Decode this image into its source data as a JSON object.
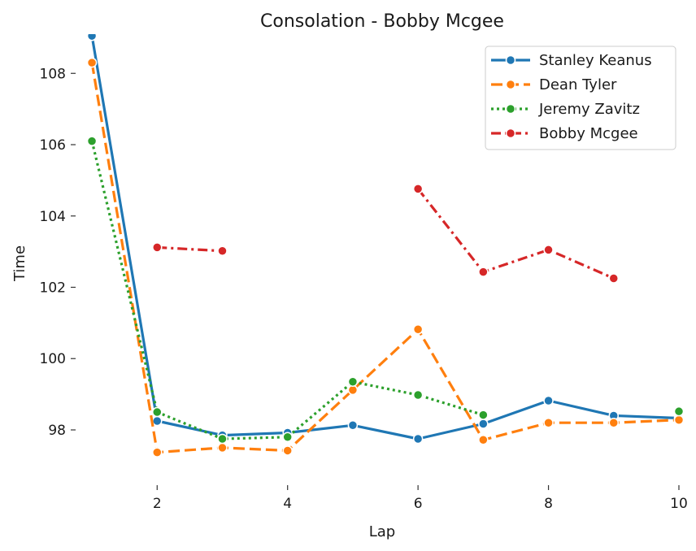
{
  "chart_data": {
    "type": "line",
    "title": "Consolation - Bobby Mcgee",
    "xlabel": "Lap",
    "ylabel": "Time",
    "xlim": [
      0.75,
      10.1
    ],
    "ylim": [
      96.45,
      109.1
    ],
    "xticks": [
      2,
      4,
      6,
      8,
      10
    ],
    "yticks": [
      98,
      100,
      102,
      104,
      106,
      108
    ],
    "grid": false,
    "legend_position": "top-right",
    "series": [
      {
        "name": "Stanley Keanus",
        "color": "#1f77b4",
        "dash": "solid",
        "x": [
          1,
          2,
          3,
          4,
          5,
          6,
          7,
          8,
          9,
          10
        ],
        "y": [
          109.05,
          98.25,
          97.85,
          97.92,
          98.13,
          97.75,
          98.17,
          98.82,
          98.4,
          98.33
        ]
      },
      {
        "name": "Dean Tyler",
        "color": "#ff7f0e",
        "dash": "dashed",
        "x": [
          1,
          2,
          3,
          4,
          5,
          6,
          7,
          8,
          9,
          10
        ],
        "y": [
          108.3,
          97.37,
          97.5,
          97.42,
          99.12,
          100.82,
          97.72,
          98.2,
          98.2,
          98.28
        ]
      },
      {
        "name": "Jeremy Zavitz",
        "color": "#2ca02c",
        "dash": "dotted",
        "x": [
          1,
          2,
          3,
          4,
          5,
          6,
          7,
          8,
          9,
          10
        ],
        "y": [
          106.1,
          98.5,
          97.75,
          97.8,
          99.35,
          98.98,
          98.42,
          null,
          null,
          98.52
        ]
      },
      {
        "name": "Bobby Mcgee",
        "color": "#d62728",
        "dash": "dashdot",
        "x": [
          1,
          2,
          3,
          4,
          5,
          6,
          7,
          8,
          9,
          10
        ],
        "y": [
          null,
          103.12,
          103.02,
          null,
          null,
          104.76,
          102.43,
          103.05,
          102.25,
          null
        ]
      }
    ]
  }
}
